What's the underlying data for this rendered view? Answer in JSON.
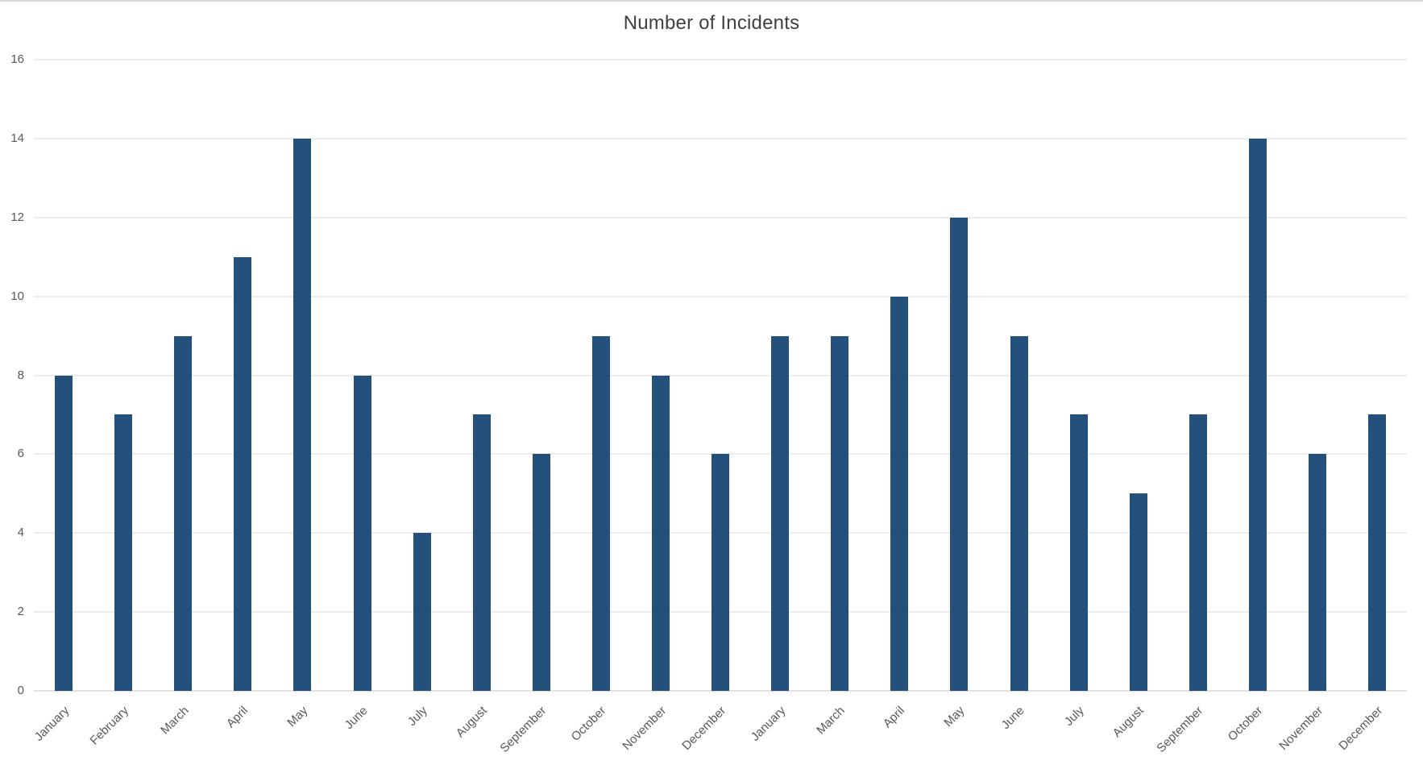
{
  "page": {
    "background": "#ffffff",
    "top_border_color": "#d9d9d9"
  },
  "chart_data": {
    "type": "bar",
    "title": "Number of Incidents",
    "categories": [
      "January",
      "February",
      "March",
      "April",
      "May",
      "June",
      "July",
      "August",
      "September",
      "October",
      "November",
      "December",
      "January",
      "March",
      "April",
      "May",
      "June",
      "July",
      "August",
      "September",
      "October",
      "November",
      "December"
    ],
    "values": [
      8,
      7,
      9,
      11,
      14,
      8,
      4,
      7,
      6,
      9,
      8,
      6,
      9,
      9,
      10,
      12,
      9,
      7,
      5,
      7,
      14,
      6,
      7
    ],
    "xlabel": "",
    "ylabel": "",
    "ylim": [
      0,
      16
    ],
    "yticks": [
      0,
      2,
      4,
      6,
      8,
      10,
      12,
      14,
      16
    ],
    "grid": true,
    "legend": false,
    "bar_color": "#24507c",
    "gridline_color": "#d9d9d9",
    "axis_line_color": "#c6c6c6",
    "tick_label_color": "#595959",
    "title_color": "#404040"
  }
}
